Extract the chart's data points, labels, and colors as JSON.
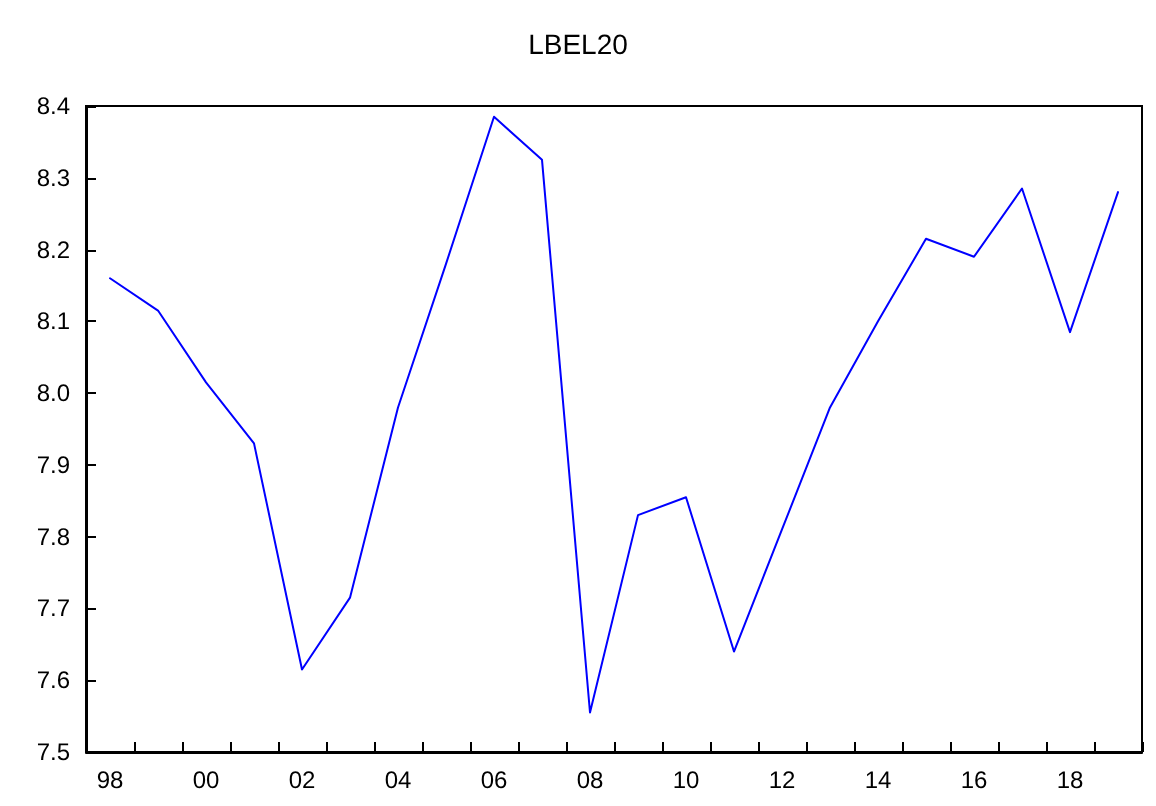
{
  "chart_data": {
    "type": "line",
    "title": "LBEL20",
    "categories": [
      "98",
      null,
      "00",
      null,
      "02",
      null,
      "04",
      null,
      "06",
      null,
      "08",
      null,
      "10",
      null,
      "12",
      null,
      "14",
      null,
      "16",
      null,
      "18",
      null
    ],
    "series": [
      {
        "color": "#0000ff",
        "values": [
          8.16,
          8.115,
          8.015,
          7.93,
          7.615,
          7.715,
          7.98,
          8.18,
          8.385,
          8.325,
          7.555,
          7.83,
          7.855,
          7.64,
          7.81,
          7.98,
          8.1,
          8.215,
          8.19,
          8.285,
          8.085,
          8.28
        ]
      }
    ],
    "ylim": [
      7.5,
      8.4
    ],
    "yticks": [
      7.5,
      7.6,
      7.7,
      7.8,
      7.9,
      {
        "value": 8,
        "label": "8.0"
      },
      8.1,
      8.2,
      8.3,
      8.4
    ],
    "grid": false,
    "marker": "none",
    "line_style": "solid"
  }
}
